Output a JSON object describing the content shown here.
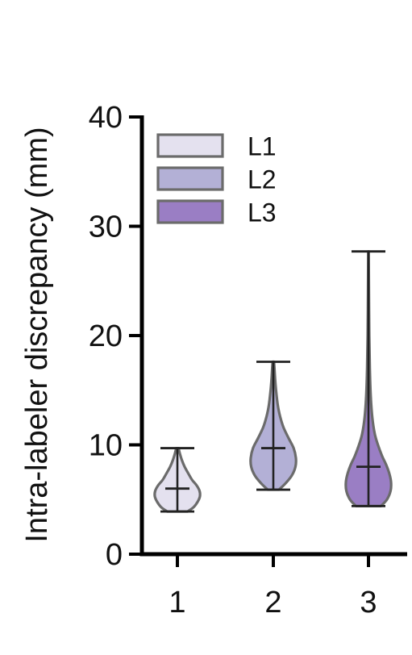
{
  "chart_data": {
    "type": "violin",
    "title": "",
    "xlabel": "",
    "ylabel": "Intra-labeler discrepancy (mm)",
    "ylim": [
      0,
      40
    ],
    "yticks": [
      0,
      10,
      20,
      30,
      40
    ],
    "categories": [
      "1",
      "2",
      "3"
    ],
    "legend": {
      "position": "top-left",
      "entries": [
        "L1",
        "L2",
        "L3"
      ]
    },
    "series": [
      {
        "name": "L1",
        "category": "1",
        "color": "#e4e1ef",
        "min": 3.9,
        "max": 9.7,
        "median": 6.0,
        "density": [
          [
            3.9,
            0.45
          ],
          [
            4.3,
            0.72
          ],
          [
            4.8,
            0.9
          ],
          [
            5.3,
            1.0
          ],
          [
            5.8,
            0.98
          ],
          [
            6.3,
            0.85
          ],
          [
            6.8,
            0.65
          ],
          [
            7.4,
            0.48
          ],
          [
            8.0,
            0.32
          ],
          [
            8.6,
            0.2
          ],
          [
            9.2,
            0.11
          ],
          [
            9.7,
            0.05
          ]
        ]
      },
      {
        "name": "L2",
        "category": "2",
        "color": "#b3b0d6",
        "min": 5.9,
        "max": 17.6,
        "median": 9.7,
        "density": [
          [
            5.9,
            0.25
          ],
          [
            6.5,
            0.55
          ],
          [
            7.2,
            0.82
          ],
          [
            8.0,
            0.98
          ],
          [
            8.8,
            1.0
          ],
          [
            9.7,
            0.9
          ],
          [
            10.6,
            0.68
          ],
          [
            11.6,
            0.45
          ],
          [
            12.6,
            0.3
          ],
          [
            13.6,
            0.2
          ],
          [
            14.8,
            0.13
          ],
          [
            16.0,
            0.08
          ],
          [
            17.0,
            0.05
          ],
          [
            17.6,
            0.03
          ]
        ]
      },
      {
        "name": "L3",
        "category": "3",
        "color": "#9a7ec4",
        "min": 4.4,
        "max": 27.7,
        "median": 8.0,
        "density": [
          [
            4.4,
            0.55
          ],
          [
            5.0,
            0.82
          ],
          [
            5.8,
            0.98
          ],
          [
            6.6,
            1.0
          ],
          [
            7.4,
            0.92
          ],
          [
            8.2,
            0.78
          ],
          [
            9.0,
            0.6
          ],
          [
            10.0,
            0.42
          ],
          [
            11.0,
            0.28
          ],
          [
            12.5,
            0.17
          ],
          [
            14.5,
            0.1
          ],
          [
            17.0,
            0.06
          ],
          [
            20.0,
            0.035
          ],
          [
            24.0,
            0.02
          ],
          [
            27.7,
            0.01
          ]
        ]
      }
    ]
  }
}
